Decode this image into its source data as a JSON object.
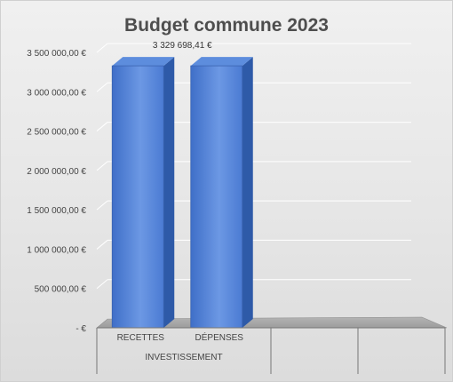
{
  "chart_data": {
    "type": "bar",
    "title": "Budget commune 2023",
    "xlabel": "",
    "ylabel": "",
    "group_label": "INVESTISSEMENT",
    "categories": [
      "RECETTES",
      "DÉPENSES"
    ],
    "series": [
      {
        "values": [
          3329698.41,
          3329698.41
        ]
      }
    ],
    "data_labels": [
      "3 329 698,41 €",
      ""
    ],
    "ylim": [
      0,
      3500000
    ],
    "ytick_values": [
      0,
      500000,
      1000000,
      1500000,
      2000000,
      2500000,
      3000000,
      3500000
    ],
    "ytick_labels": [
      "-   €",
      "500 000,00 €",
      "1 000 000,00 €",
      "1 500 000,00 €",
      "2 000 000,00 €",
      "2 500 000,00 €",
      "3 000 000,00 €",
      "3 500 000,00 €"
    ],
    "grid": true,
    "style": "3d-column",
    "bar_color": "#4a7bd4"
  }
}
